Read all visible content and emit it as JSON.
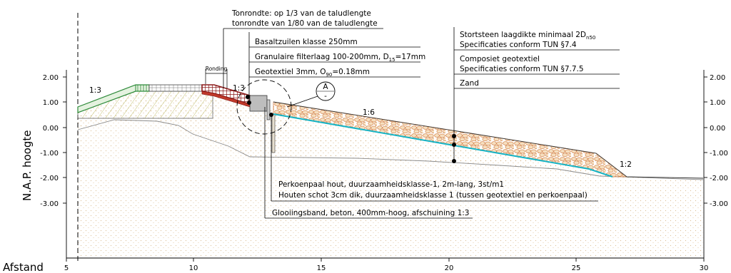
{
  "axes": {
    "y_label": "N.A.P. hoogte",
    "x_label": "Afstand",
    "y_ticks": [
      "2.00",
      "1.00",
      "0.00",
      "-1.00",
      "-2.00",
      "-3.00"
    ],
    "x_ticks": [
      "5",
      "10",
      "15",
      "20",
      "25",
      "30"
    ]
  },
  "slopes": {
    "crest_left": "1:3",
    "basalt": "1:3",
    "main": "1:6",
    "toe": "1:2"
  },
  "labels": {
    "ronding": "Ronding",
    "detail_ref_top": "A",
    "detail_ref_bottom": "-"
  },
  "annotations": {
    "tonrondte_1": "Tonrondte: op 1/3 van de taludlengte",
    "tonrondte_2": "tonrondte van 1/80 van de taludlengte",
    "basalt": "Basaltzuilen klasse 250mm",
    "filter": "Granulaire filterlaag 100-200mm, D",
    "filter_sub": "15",
    "filter_tail": "=17mm",
    "geotextiel": "Geotextiel 3mm, O",
    "geotextiel_sub": "90",
    "geotextiel_tail": "=0.18mm",
    "stortsteen_1": "Stortsteen laagdikte minimaal 2D",
    "stortsteen_1_sub": "n50",
    "stortsteen_2": "Specificaties conform TUN §7.4",
    "composiet_1": "Composiet geotextiel",
    "composiet_2": "Specificaties conform TUN §7.7.5",
    "zand": "Zand",
    "perkoen": "Perkoenpaal hout, duurzaamheidsklasse-1, 2m-lang, 3st/m1",
    "schot": "Houten schot 3cm dik, duurzaamheidsklasse 1 (tussen geotextiel en perkoenpaal)",
    "glooiing": "Glooiingsband, beton, 400mm-hoog, afschuining 1:3"
  },
  "colors": {
    "grass": "#2e8b3a",
    "basalt": "#8b1a1a",
    "filter": "#c0392b",
    "geotextile": "#17b3c4",
    "rock_fill": "#f6dfc0",
    "rock_stroke": "#d4834a",
    "sand_dots": "#cfa56d",
    "fill_hatch": "#a9a84a"
  }
}
